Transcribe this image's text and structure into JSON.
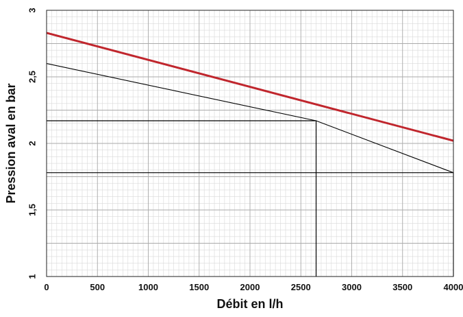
{
  "chart_data": {
    "type": "line",
    "xlabel": "Débit en l/h",
    "ylabel": "Pression aval en bar",
    "xlim": [
      0,
      4000
    ],
    "ylim": [
      1,
      3
    ],
    "grid": true,
    "xticks": [
      0,
      500,
      1000,
      1500,
      2000,
      2500,
      3000,
      3500,
      4000
    ],
    "xtick_labels": [
      "0",
      "500",
      "1000",
      "1500",
      "2000",
      "2500",
      "3000",
      "3500",
      "4000"
    ],
    "yticks": [
      1,
      1.5,
      2,
      2.5,
      3
    ],
    "ytick_labels": [
      "1",
      "1,5",
      "2",
      "2,5",
      "3"
    ],
    "series": [
      {
        "color": "#c0262d",
        "x": [
          0,
          4000
        ],
        "y": [
          2.83,
          2.02
        ]
      },
      {
        "color": "#000000",
        "x": [
          0,
          2650,
          4000
        ],
        "y": [
          2.6,
          2.17,
          1.78
        ]
      }
    ],
    "reference_lines": [
      {
        "x": [
          0,
          2650,
          2650
        ],
        "y": [
          2.17,
          2.17,
          1
        ],
        "color": "#000000"
      },
      {
        "x": [
          0,
          4000,
          4000
        ],
        "y": [
          1.78,
          1.78,
          1
        ],
        "color": "#000000"
      }
    ]
  }
}
